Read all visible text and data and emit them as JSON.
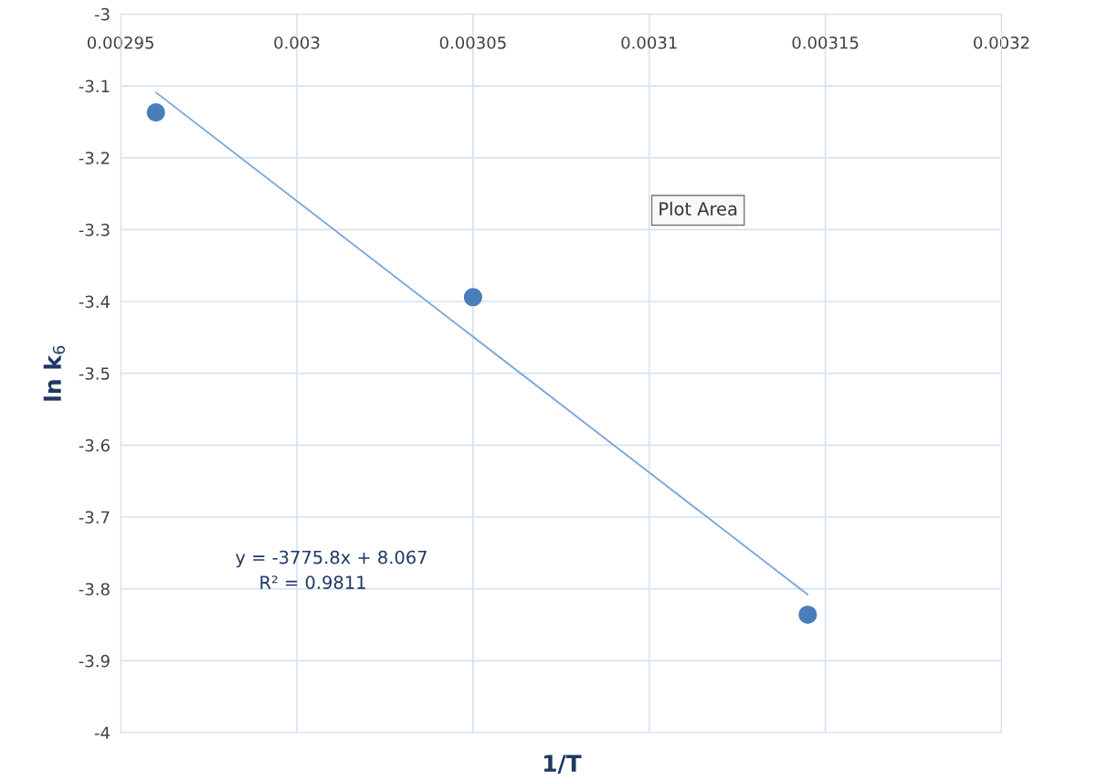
{
  "chart_data": {
    "type": "scatter",
    "xlabel": "1/T",
    "ylabel": "ln k$_{6}$",
    "series": [
      {
        "color": "#4a7ebb",
        "x": [
          0.00296,
          0.00305,
          0.003145
        ],
        "values": [
          -3.137,
          -3.394,
          -3.836
        ]
      },
      {
        "type": "line",
        "marker": "none",
        "color": "#7aa5d8",
        "x": [
          0.00296,
          0.003145
        ],
        "values": [
          -3.109,
          -3.808
        ]
      }
    ],
    "annotations": [
      "y = -3775.8x + 8.067",
      "R² = 0.9811",
      "Plot Area"
    ],
    "xlim": [
      0.00295,
      0.0032
    ],
    "xticks": [
      0.00295,
      0.003,
      0.00305,
      0.0031,
      0.00315,
      0.0032
    ],
    "ylim": [
      -4,
      -3
    ],
    "yticks": [
      -4,
      -3.9,
      -3.8,
      -3.7,
      -3.6,
      -3.5,
      -3.4,
      -3.3,
      -3.2,
      -3.1,
      -3
    ],
    "grid": true,
    "marker": "circle",
    "line_style": "solid"
  }
}
